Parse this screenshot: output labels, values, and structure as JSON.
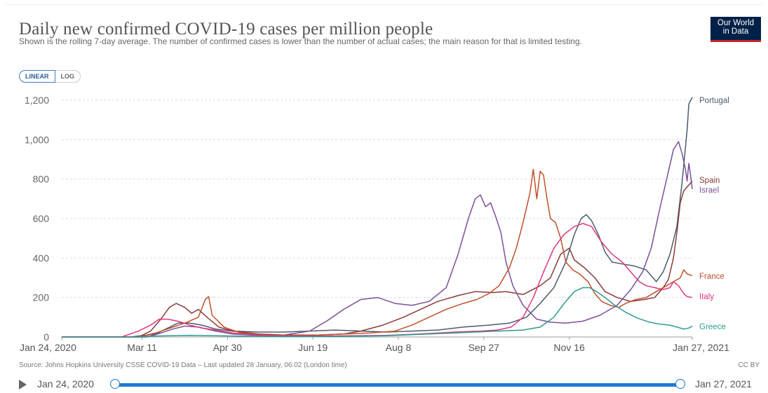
{
  "header": {
    "title": "Daily new confirmed COVID-19 cases per million people",
    "subtitle": "Shown is the rolling 7-day average. The number of confirmed cases is lower than the number of actual cases; the main reason for that is limited testing.",
    "logo_line1": "Our World",
    "logo_line2": "in Data",
    "logo_color": "#002147",
    "logo_accent": "#c0272d"
  },
  "controls": {
    "linear_label": "LINEAR",
    "log_label": "LOG",
    "active": "LINEAR"
  },
  "footer": {
    "source": "Source: Johns Hopkins University CSSE COVID-19 Data – Last updated 28 January, 06:02 (London time)",
    "license": "CC BY"
  },
  "timeline": {
    "start_label": "Jan 24, 2020",
    "end_label": "Jan 27, 2021",
    "start_fraction": 0,
    "end_fraction": 1
  },
  "chart_data": {
    "type": "line",
    "title": "Daily new confirmed COVID-19 cases per million people",
    "ylim": [
      0,
      1250
    ],
    "yticks": [
      0,
      200,
      400,
      600,
      800,
      1000,
      1200
    ],
    "ytick_labels": [
      "0",
      "200",
      "400",
      "600",
      "800",
      "1,000",
      "1,200"
    ],
    "x_range_days": [
      0,
      369
    ],
    "xticks": [
      {
        "day": 0,
        "label": "Jan 24, 2020"
      },
      {
        "day": 47,
        "label": "Mar 11"
      },
      {
        "day": 97,
        "label": "Apr 30"
      },
      {
        "day": 147,
        "label": "Jun 19"
      },
      {
        "day": 197,
        "label": "Aug 8"
      },
      {
        "day": 247,
        "label": "Sep 27"
      },
      {
        "day": 297,
        "label": "Nov 16"
      },
      {
        "day": 369,
        "label": "Jan 27, 2021"
      }
    ],
    "grid": true,
    "legend": "right-labels",
    "series": [
      {
        "name": "Portugal",
        "color": "#4c5b6b",
        "label_value": 1215,
        "points": [
          [
            0,
            0
          ],
          [
            40,
            0
          ],
          [
            55,
            15
          ],
          [
            62,
            45
          ],
          [
            68,
            70
          ],
          [
            75,
            70
          ],
          [
            82,
            60
          ],
          [
            90,
            40
          ],
          [
            100,
            30
          ],
          [
            115,
            25
          ],
          [
            130,
            25
          ],
          [
            145,
            30
          ],
          [
            160,
            35
          ],
          [
            175,
            30
          ],
          [
            190,
            25
          ],
          [
            205,
            30
          ],
          [
            220,
            35
          ],
          [
            235,
            50
          ],
          [
            250,
            60
          ],
          [
            262,
            70
          ],
          [
            272,
            100
          ],
          [
            280,
            170
          ],
          [
            288,
            250
          ],
          [
            295,
            380
          ],
          [
            300,
            520
          ],
          [
            304,
            600
          ],
          [
            307,
            620
          ],
          [
            310,
            590
          ],
          [
            314,
            520
          ],
          [
            318,
            430
          ],
          [
            322,
            380
          ],
          [
            328,
            370
          ],
          [
            335,
            360
          ],
          [
            342,
            340
          ],
          [
            346,
            300
          ],
          [
            348,
            280
          ],
          [
            352,
            330
          ],
          [
            356,
            420
          ],
          [
            360,
            560
          ],
          [
            363,
            780
          ],
          [
            366,
            1050
          ],
          [
            367,
            1180
          ],
          [
            369,
            1215
          ]
        ]
      },
      {
        "name": "Spain",
        "color": "#8b3a3a",
        "label_value": 790,
        "points": [
          [
            0,
            0
          ],
          [
            45,
            0
          ],
          [
            52,
            30
          ],
          [
            58,
            90
          ],
          [
            63,
            150
          ],
          [
            67,
            170
          ],
          [
            72,
            150
          ],
          [
            76,
            120
          ],
          [
            80,
            140
          ],
          [
            85,
            100
          ],
          [
            92,
            50
          ],
          [
            100,
            30
          ],
          [
            115,
            15
          ],
          [
            130,
            10
          ],
          [
            150,
            10
          ],
          [
            165,
            15
          ],
          [
            175,
            30
          ],
          [
            188,
            60
          ],
          [
            200,
            100
          ],
          [
            210,
            140
          ],
          [
            220,
            180
          ],
          [
            232,
            210
          ],
          [
            242,
            230
          ],
          [
            252,
            225
          ],
          [
            260,
            230
          ],
          [
            270,
            215
          ],
          [
            280,
            260
          ],
          [
            286,
            300
          ],
          [
            292,
            420
          ],
          [
            297,
            450
          ],
          [
            300,
            390
          ],
          [
            306,
            350
          ],
          [
            312,
            300
          ],
          [
            318,
            230
          ],
          [
            325,
            200
          ],
          [
            333,
            180
          ],
          [
            341,
            190
          ],
          [
            347,
            200
          ],
          [
            352,
            250
          ],
          [
            355,
            290
          ],
          [
            358,
            400
          ],
          [
            360,
            530
          ],
          [
            362,
            680
          ],
          [
            364,
            740
          ],
          [
            366,
            760
          ],
          [
            369,
            790
          ]
        ]
      },
      {
        "name": "Israel",
        "color": "#7b4f9d",
        "label_value": 750,
        "points": [
          [
            0,
            0
          ],
          [
            50,
            0
          ],
          [
            58,
            20
          ],
          [
            65,
            40
          ],
          [
            72,
            55
          ],
          [
            80,
            50
          ],
          [
            90,
            30
          ],
          [
            100,
            15
          ],
          [
            115,
            8
          ],
          [
            130,
            10
          ],
          [
            145,
            30
          ],
          [
            155,
            80
          ],
          [
            165,
            140
          ],
          [
            175,
            190
          ],
          [
            185,
            200
          ],
          [
            195,
            170
          ],
          [
            205,
            160
          ],
          [
            215,
            180
          ],
          [
            225,
            250
          ],
          [
            232,
            420
          ],
          [
            238,
            600
          ],
          [
            242,
            700
          ],
          [
            245,
            720
          ],
          [
            248,
            660
          ],
          [
            251,
            680
          ],
          [
            254,
            610
          ],
          [
            257,
            530
          ],
          [
            260,
            380
          ],
          [
            264,
            260
          ],
          [
            270,
            160
          ],
          [
            278,
            90
          ],
          [
            286,
            75
          ],
          [
            295,
            70
          ],
          [
            305,
            80
          ],
          [
            315,
            110
          ],
          [
            325,
            160
          ],
          [
            333,
            240
          ],
          [
            340,
            330
          ],
          [
            345,
            450
          ],
          [
            350,
            650
          ],
          [
            354,
            800
          ],
          [
            358,
            950
          ],
          [
            361,
            990
          ],
          [
            363,
            930
          ],
          [
            365,
            850
          ],
          [
            366,
            790
          ],
          [
            367,
            880
          ],
          [
            368,
            820
          ],
          [
            369,
            750
          ]
        ]
      },
      {
        "name": "France",
        "color": "#c0502a",
        "label_value": 310,
        "points": [
          [
            0,
            0
          ],
          [
            45,
            0
          ],
          [
            55,
            20
          ],
          [
            65,
            50
          ],
          [
            72,
            70
          ],
          [
            80,
            100
          ],
          [
            84,
            190
          ],
          [
            86,
            205
          ],
          [
            88,
            110
          ],
          [
            95,
            50
          ],
          [
            105,
            20
          ],
          [
            120,
            10
          ],
          [
            135,
            8
          ],
          [
            150,
            10
          ],
          [
            165,
            15
          ],
          [
            180,
            20
          ],
          [
            195,
            30
          ],
          [
            205,
            60
          ],
          [
            215,
            100
          ],
          [
            225,
            140
          ],
          [
            235,
            170
          ],
          [
            243,
            190
          ],
          [
            250,
            220
          ],
          [
            256,
            260
          ],
          [
            262,
            350
          ],
          [
            266,
            450
          ],
          [
            270,
            580
          ],
          [
            274,
            730
          ],
          [
            276,
            850
          ],
          [
            278,
            700
          ],
          [
            280,
            840
          ],
          [
            282,
            820
          ],
          [
            284,
            700
          ],
          [
            286,
            600
          ],
          [
            289,
            580
          ],
          [
            292,
            500
          ],
          [
            295,
            380
          ],
          [
            299,
            340
          ],
          [
            303,
            320
          ],
          [
            308,
            280
          ],
          [
            312,
            220
          ],
          [
            316,
            180
          ],
          [
            321,
            160
          ],
          [
            326,
            150
          ],
          [
            330,
            170
          ],
          [
            336,
            190
          ],
          [
            342,
            200
          ],
          [
            348,
            230
          ],
          [
            354,
            260
          ],
          [
            358,
            280
          ],
          [
            362,
            300
          ],
          [
            364,
            340
          ],
          [
            366,
            320
          ],
          [
            369,
            310
          ]
        ]
      },
      {
        "name": "Italy",
        "color": "#e0377f",
        "label_value": 200,
        "points": [
          [
            0,
            0
          ],
          [
            35,
            0
          ],
          [
            45,
            30
          ],
          [
            52,
            60
          ],
          [
            57,
            90
          ],
          [
            62,
            90
          ],
          [
            68,
            80
          ],
          [
            75,
            60
          ],
          [
            82,
            45
          ],
          [
            90,
            35
          ],
          [
            100,
            20
          ],
          [
            115,
            10
          ],
          [
            130,
            5
          ],
          [
            150,
            5
          ],
          [
            170,
            6
          ],
          [
            190,
            8
          ],
          [
            210,
            15
          ],
          [
            230,
            25
          ],
          [
            245,
            30
          ],
          [
            255,
            35
          ],
          [
            263,
            50
          ],
          [
            270,
            100
          ],
          [
            276,
            200
          ],
          [
            282,
            330
          ],
          [
            288,
            450
          ],
          [
            294,
            520
          ],
          [
            300,
            560
          ],
          [
            305,
            575
          ],
          [
            310,
            560
          ],
          [
            316,
            480
          ],
          [
            322,
            420
          ],
          [
            328,
            380
          ],
          [
            334,
            320
          ],
          [
            338,
            280
          ],
          [
            342,
            260
          ],
          [
            347,
            250
          ],
          [
            352,
            240
          ],
          [
            356,
            250
          ],
          [
            358,
            280
          ],
          [
            361,
            260
          ],
          [
            364,
            220
          ],
          [
            366,
            205
          ],
          [
            369,
            200
          ]
        ]
      },
      {
        "name": "Greece",
        "color": "#2d9a8f",
        "label_value": 55,
        "points": [
          [
            0,
            0
          ],
          [
            40,
            0
          ],
          [
            55,
            5
          ],
          [
            75,
            8
          ],
          [
            100,
            5
          ],
          [
            130,
            2
          ],
          [
            160,
            3
          ],
          [
            190,
            6
          ],
          [
            215,
            15
          ],
          [
            235,
            22
          ],
          [
            255,
            30
          ],
          [
            270,
            35
          ],
          [
            280,
            50
          ],
          [
            288,
            100
          ],
          [
            294,
            170
          ],
          [
            300,
            230
          ],
          [
            305,
            250
          ],
          [
            309,
            250
          ],
          [
            313,
            230
          ],
          [
            318,
            200
          ],
          [
            323,
            165
          ],
          [
            330,
            125
          ],
          [
            337,
            95
          ],
          [
            344,
            75
          ],
          [
            350,
            65
          ],
          [
            356,
            60
          ],
          [
            360,
            50
          ],
          [
            364,
            40
          ],
          [
            367,
            45
          ],
          [
            369,
            55
          ]
        ]
      }
    ]
  }
}
